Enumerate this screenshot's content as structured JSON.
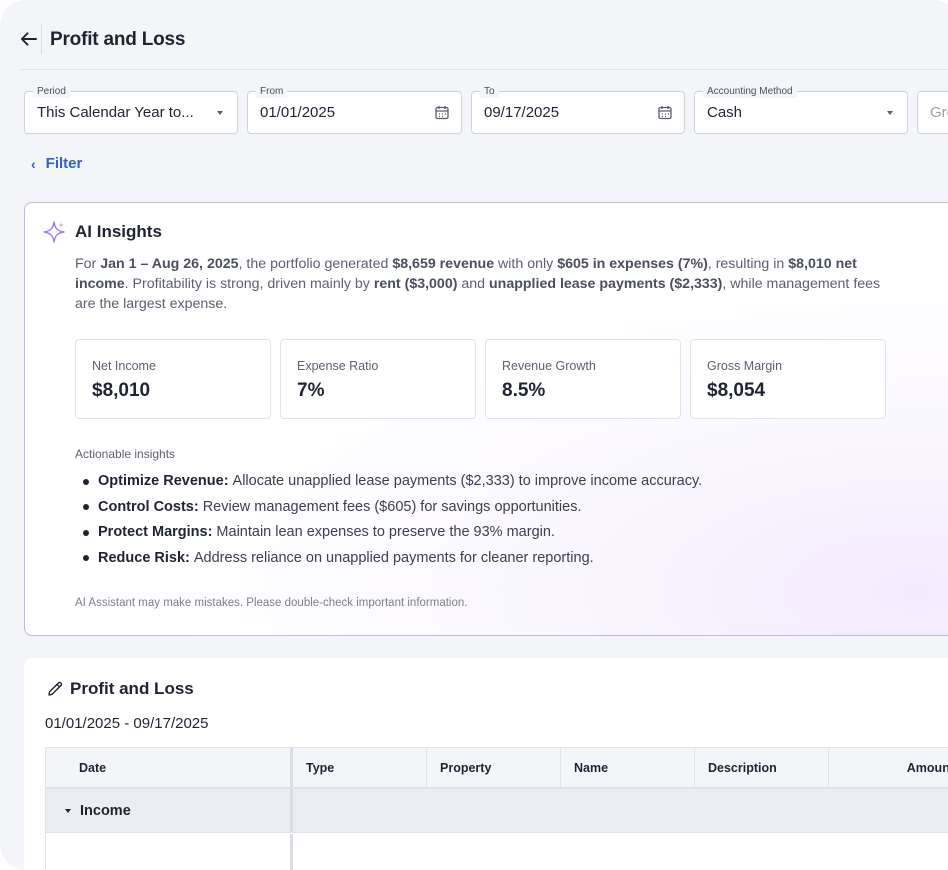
{
  "header": {
    "title": "Profit and Loss",
    "back_icon": "arrow-left-icon"
  },
  "filters": {
    "period": {
      "label": "Period",
      "value": "This Calendar Year to..."
    },
    "from": {
      "label": "From",
      "value": "01/01/2025",
      "icon": "calendar-icon"
    },
    "to": {
      "label": "To",
      "value": "09/17/2025",
      "icon": "calendar-icon"
    },
    "accounting_method": {
      "label": "Accounting Method",
      "value": "Cash"
    },
    "group": {
      "placeholder": "Gro"
    },
    "filter_toggle": "Filter"
  },
  "ai_insights": {
    "title": "AI Insights",
    "icon": "sparkle-icon",
    "summary": {
      "p1": "For ",
      "b1": "Jan 1 – Aug 26, 2025",
      "p2": ", the portfolio generated ",
      "b2": "$8,659 revenue",
      "p3": " with only ",
      "b3": "$605 in expenses (7%)",
      "p4": ", resulting in ",
      "b4": "$8,010 net income",
      "p5": ". Profitability is strong, driven mainly by ",
      "b5": "rent ($3,000)",
      "p6": " and ",
      "b6": "unapplied lease payments ($2,333)",
      "p7": ", while management fees are the largest expense."
    },
    "metrics": [
      {
        "label": "Net Income",
        "value": "$8,010"
      },
      {
        "label": "Expense Ratio",
        "value": "7%"
      },
      {
        "label": "Revenue Growth",
        "value": "8.5%"
      },
      {
        "label": "Gross Margin",
        "value": "$8,054"
      }
    ],
    "actionable_title": "Actionable insights",
    "actions": [
      {
        "title": "Optimize Revenue:",
        "text": "Allocate unapplied lease payments ($2,333) to improve income accuracy."
      },
      {
        "title": "Control Costs:",
        "text": "Review management fees ($605) for savings opportunities."
      },
      {
        "title": "Protect Margins:",
        "text": "Maintain lean expenses to preserve the 93% margin."
      },
      {
        "title": "Reduce Risk:",
        "text": "Address reliance on unapplied payments for cleaner reporting."
      }
    ],
    "disclaimer": "AI Assistant may make mistakes. Please double-check important information."
  },
  "report": {
    "title": "Profit and Loss",
    "icon": "pencil-icon",
    "date_range": "01/01/2025 - 09/17/2025",
    "columns": [
      "Date",
      "Type",
      "Property",
      "Name",
      "Description",
      "Amount"
    ],
    "groups": [
      {
        "label": "Income",
        "expanded": true
      }
    ]
  },
  "colors": {
    "accent": "#2f5fc4",
    "ai_border": "#c7b3e6",
    "ai_sparkle": "#9a7fe0"
  }
}
